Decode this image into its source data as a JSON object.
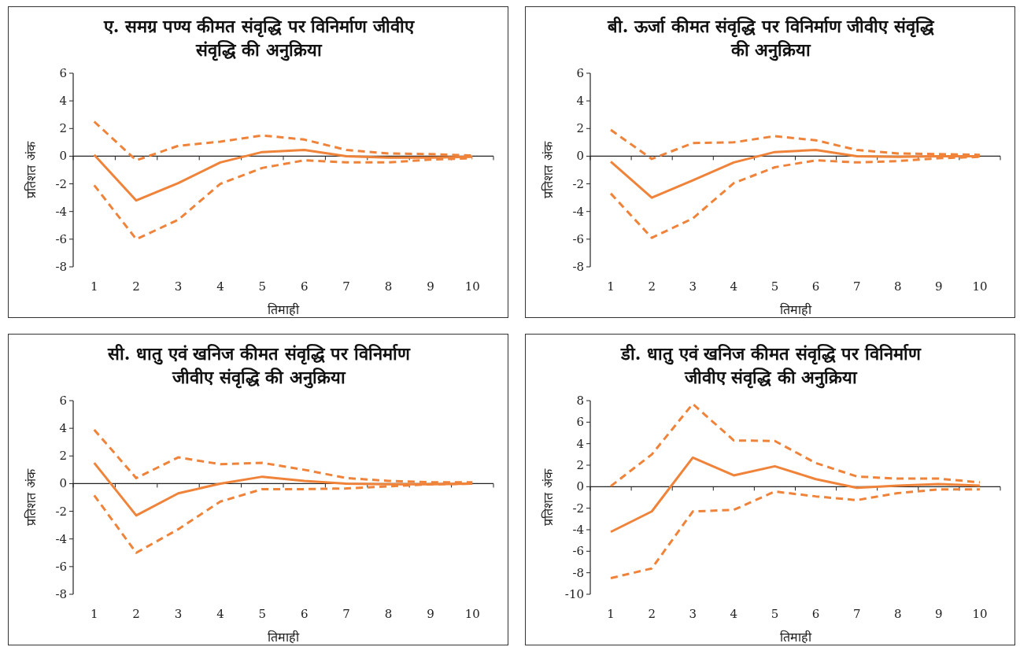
{
  "chart_data": [
    {
      "type": "line",
      "title": "ए. समग्र पण्य कीमत संवृद्धि पर विनिर्माण जीवीए संवृद्धि की अनुक्रिया",
      "xlabel": "तिमाही",
      "ylabel": "प्रतिशत अंक",
      "categories": [
        "1",
        "2",
        "3",
        "4",
        "5",
        "6",
        "7",
        "8",
        "9",
        "10"
      ],
      "ylim": [
        -8,
        6
      ],
      "yticks": [
        -8,
        -6,
        -4,
        -2,
        0,
        2,
        4,
        6
      ],
      "series": [
        {
          "color": "#f0833a",
          "line_style": "solid",
          "values": [
            0.1,
            -3.2,
            -1.95,
            -0.45,
            0.3,
            0.45,
            0,
            -0.1,
            -0.1,
            -0.05
          ]
        },
        {
          "color": "#f0833a",
          "line_style": "dashed",
          "values": [
            2.5,
            -0.3,
            0.75,
            1.05,
            1.5,
            1.2,
            0.45,
            0.2,
            0.15,
            0.05
          ]
        },
        {
          "color": "#f0833a",
          "line_style": "dashed",
          "values": [
            -2.1,
            -6.0,
            -4.6,
            -2.0,
            -0.85,
            -0.3,
            -0.45,
            -0.45,
            -0.25,
            -0.15
          ]
        }
      ]
    },
    {
      "type": "line",
      "title": "बी. ऊर्जा कीमत संवृद्धि पर विनिर्माण जीवीए संवृद्धि की अनुक्रिया",
      "xlabel": "तिमाही",
      "ylabel": "प्रतिशत अंक",
      "categories": [
        "1",
        "2",
        "3",
        "4",
        "5",
        "6",
        "7",
        "8",
        "9",
        "10"
      ],
      "ylim": [
        -8,
        6
      ],
      "yticks": [
        -8,
        -6,
        -4,
        -2,
        0,
        2,
        4,
        6
      ],
      "series": [
        {
          "color": "#f0833a",
          "line_style": "solid",
          "values": [
            -0.4,
            -3.0,
            -1.75,
            -0.45,
            0.3,
            0.45,
            0,
            -0.05,
            0,
            0
          ]
        },
        {
          "color": "#f0833a",
          "line_style": "dashed",
          "values": [
            1.9,
            -0.2,
            0.95,
            1.0,
            1.45,
            1.15,
            0.45,
            0.2,
            0.15,
            0.1
          ]
        },
        {
          "color": "#f0833a",
          "line_style": "dashed",
          "values": [
            -2.7,
            -5.9,
            -4.5,
            -1.95,
            -0.8,
            -0.3,
            -0.45,
            -0.35,
            -0.15,
            -0.05
          ]
        }
      ]
    },
    {
      "type": "line",
      "title": "सी. धातु एवं खनिज कीमत संवृद्धि पर विनिर्माण जीवीए संवृद्धि की अनुक्रिया",
      "xlabel": "तिमाही",
      "ylabel": "प्रतिशत अंक",
      "categories": [
        "1",
        "2",
        "3",
        "4",
        "5",
        "6",
        "7",
        "8",
        "9",
        "10"
      ],
      "ylim": [
        -8,
        6
      ],
      "yticks": [
        -8,
        -6,
        -4,
        -2,
        0,
        2,
        4,
        6
      ],
      "series": [
        {
          "color": "#f0833a",
          "line_style": "solid",
          "values": [
            1.5,
            -2.3,
            -0.7,
            0,
            0.5,
            0.2,
            0,
            -0.05,
            -0.05,
            0
          ]
        },
        {
          "color": "#f0833a",
          "line_style": "dashed",
          "values": [
            3.9,
            0.4,
            1.9,
            1.4,
            1.5,
            1.0,
            0.4,
            0.2,
            0.1,
            0.1
          ]
        },
        {
          "color": "#f0833a",
          "line_style": "dashed",
          "values": [
            -0.85,
            -5.0,
            -3.3,
            -1.3,
            -0.4,
            -0.4,
            -0.35,
            -0.2,
            -0.05,
            0
          ]
        }
      ]
    },
    {
      "type": "line",
      "title": "डी. धातु एवं खनिज कीमत संवृद्धि पर विनिर्माण जीवीए संवृद्धि की अनुक्रिया",
      "xlabel": "तिमाही",
      "ylabel": "प्रतिशत अंक",
      "categories": [
        "1",
        "2",
        "3",
        "4",
        "5",
        "6",
        "7",
        "8",
        "9",
        "10"
      ],
      "ylim": [
        -10,
        8
      ],
      "yticks": [
        -10,
        -8,
        -6,
        -4,
        -2,
        0,
        2,
        4,
        6,
        8
      ],
      "series": [
        {
          "color": "#f0833a",
          "line_style": "solid",
          "values": [
            -4.2,
            -2.3,
            2.7,
            1.05,
            1.9,
            0.7,
            -0.1,
            0.1,
            0.25,
            0.1
          ]
        },
        {
          "color": "#f0833a",
          "line_style": "dashed",
          "values": [
            0.05,
            3.0,
            7.7,
            4.3,
            4.25,
            2.2,
            0.95,
            0.75,
            0.75,
            0.4
          ]
        },
        {
          "color": "#f0833a",
          "line_style": "dashed",
          "values": [
            -8.5,
            -7.6,
            -2.3,
            -2.15,
            -0.45,
            -0.9,
            -1.25,
            -0.6,
            -0.25,
            -0.25
          ]
        }
      ]
    }
  ]
}
